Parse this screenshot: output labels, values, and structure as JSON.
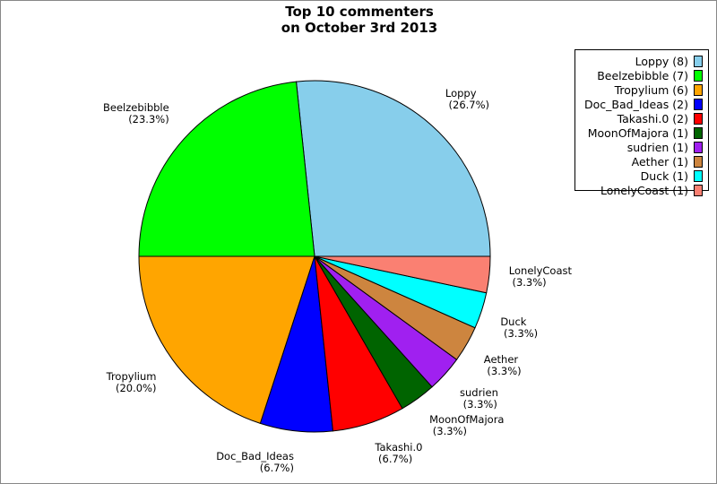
{
  "chart_data": {
    "type": "pie",
    "title": "Top 10 commenters\non October 3rd 2013",
    "title_lines": [
      "Top 10 commenters",
      "on October 3rd 2013"
    ],
    "legend_position": "top-right",
    "start_angle_deg": 0,
    "direction": "counterclockwise",
    "slices": [
      {
        "label": "Loppy",
        "value": 8,
        "percent": "26.7%",
        "legend": "Loppy (8)",
        "color": "#87CEEB"
      },
      {
        "label": "Beelzebibble",
        "value": 7,
        "percent": "23.3%",
        "legend": "Beelzebibble (7)",
        "color": "#00FF00"
      },
      {
        "label": "Tropylium",
        "value": 6,
        "percent": "20.0%",
        "legend": "Tropylium (6)",
        "color": "#FFA500"
      },
      {
        "label": "Doc_Bad_Ideas",
        "value": 2,
        "percent": "6.7%",
        "legend": "Doc_Bad_Ideas (2)",
        "color": "#0000FF"
      },
      {
        "label": "Takashi.0",
        "value": 2,
        "percent": "6.7%",
        "legend": "Takashi.0 (2)",
        "color": "#FF0000"
      },
      {
        "label": "MoonOfMajora",
        "value": 1,
        "percent": "3.3%",
        "legend": "MoonOfMajora (1)",
        "color": "#006400"
      },
      {
        "label": "sudrien",
        "value": 1,
        "percent": "3.3%",
        "legend": "sudrien (1)",
        "color": "#A020F0"
      },
      {
        "label": "Aether",
        "value": 1,
        "percent": "3.3%",
        "legend": "Aether (1)",
        "color": "#CD853F"
      },
      {
        "label": "Duck",
        "value": 1,
        "percent": "3.3%",
        "legend": "Duck (1)",
        "color": "#00FFFF"
      },
      {
        "label": "LonelyCoast",
        "value": 1,
        "percent": "3.3%",
        "legend": "LonelyCoast (1)",
        "color": "#FA8072"
      }
    ]
  }
}
